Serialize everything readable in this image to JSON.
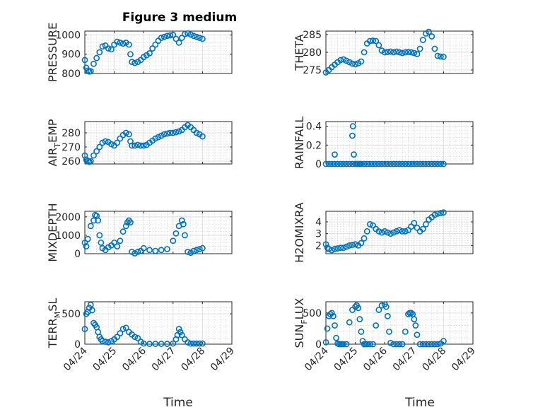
{
  "figure": {
    "title": "Figure 3 medium",
    "marker_color": "#0072bd",
    "xlabel": "Time",
    "x_ticks": [
      "04/24",
      "04/25",
      "04/26",
      "04/27",
      "04/28",
      "04/29"
    ]
  },
  "chart_data": [
    {
      "type": "scatter",
      "name": "pressure-panel",
      "ylabel": "PRESSURE",
      "ylim": [
        800,
        1020
      ],
      "yticks": [
        800,
        900,
        1000
      ],
      "xlim": [
        "04/24",
        "04/29"
      ],
      "grid": true,
      "x": [
        0.0,
        0.05,
        0.1,
        0.15,
        0.2,
        0.3,
        0.4,
        0.5,
        0.6,
        0.7,
        0.8,
        0.9,
        1.0,
        1.1,
        1.2,
        1.3,
        1.4,
        1.5,
        1.55,
        1.6,
        1.7,
        1.8,
        1.9,
        2.0,
        2.1,
        2.2,
        2.3,
        2.4,
        2.5,
        2.6,
        2.7,
        2.8,
        2.9,
        3.0,
        3.1,
        3.2,
        3.3,
        3.4,
        3.5,
        3.6,
        3.7,
        3.8,
        3.9,
        4.0
      ],
      "y": [
        870,
        830,
        815,
        810,
        812,
        850,
        880,
        910,
        940,
        945,
        930,
        925,
        950,
        965,
        960,
        955,
        960,
        950,
        900,
        860,
        855,
        860,
        870,
        885,
        895,
        905,
        930,
        950,
        970,
        985,
        990,
        995,
        998,
        1000,
        980,
        960,
        985,
        1005,
        1008,
        1002,
        995,
        990,
        985,
        980
      ]
    },
    {
      "type": "scatter",
      "name": "theta-panel",
      "ylabel": "THETA",
      "ylim": [
        274,
        286
      ],
      "yticks": [
        275,
        280,
        285
      ],
      "xlim": [
        "04/24",
        "04/29"
      ],
      "grid": true,
      "x": [
        0.0,
        0.1,
        0.2,
        0.3,
        0.4,
        0.5,
        0.6,
        0.7,
        0.8,
        0.9,
        1.0,
        1.1,
        1.2,
        1.3,
        1.4,
        1.5,
        1.6,
        1.7,
        1.8,
        1.9,
        2.0,
        2.1,
        2.2,
        2.3,
        2.4,
        2.5,
        2.6,
        2.7,
        2.8,
        2.9,
        3.0,
        3.1,
        3.2,
        3.3,
        3.4,
        3.5,
        3.6,
        3.7,
        3.8,
        3.9,
        4.0
      ],
      "y": [
        274.3,
        275.0,
        275.8,
        276.5,
        277.2,
        277.8,
        278.0,
        277.6,
        277.2,
        276.8,
        276.6,
        276.9,
        277.4,
        280.0,
        282.5,
        283.2,
        283.3,
        283.2,
        282.0,
        280.5,
        280.0,
        280.1,
        280.2,
        280.0,
        280.2,
        280.0,
        279.8,
        280.0,
        280.1,
        280.0,
        279.8,
        279.5,
        281.0,
        283.5,
        285.3,
        285.8,
        284.5,
        281.0,
        279.0,
        278.8,
        278.7
      ]
    },
    {
      "type": "scatter",
      "name": "air-temp-panel",
      "ylabel_main": "AIR",
      "ylabel_sub": "T",
      "ylabel_rest": "EMP",
      "ylim": [
        258,
        288
      ],
      "yticks": [
        260,
        270,
        280
      ],
      "xlim": [
        "04/24",
        "04/29"
      ],
      "grid": true,
      "x": [
        0.0,
        0.05,
        0.1,
        0.15,
        0.2,
        0.3,
        0.4,
        0.5,
        0.6,
        0.7,
        0.8,
        0.9,
        1.0,
        1.1,
        1.2,
        1.3,
        1.4,
        1.5,
        1.55,
        1.6,
        1.7,
        1.8,
        1.9,
        2.0,
        2.1,
        2.2,
        2.3,
        2.4,
        2.5,
        2.6,
        2.7,
        2.8,
        2.9,
        3.0,
        3.1,
        3.2,
        3.3,
        3.4,
        3.5,
        3.6,
        3.7,
        3.8,
        3.9,
        4.0
      ],
      "y": [
        264,
        261,
        260,
        259.5,
        260,
        264,
        267,
        270,
        273,
        274,
        273.5,
        272,
        271,
        273,
        276,
        278.5,
        280,
        279,
        274,
        271,
        271,
        271.5,
        271,
        271,
        271.5,
        273,
        274.5,
        276,
        277,
        278,
        279,
        279.5,
        280,
        280,
        280.5,
        281,
        282,
        284,
        285.5,
        284,
        282,
        280,
        279,
        277.5
      ]
    },
    {
      "type": "scatter",
      "name": "rainfall-panel",
      "ylabel": "RAINFALL",
      "ylim": [
        0,
        0.45
      ],
      "yticks": [
        0,
        0.2,
        0.4
      ],
      "xlim": [
        "04/24",
        "04/29"
      ],
      "grid": true,
      "x": [
        0.0,
        0.1,
        0.2,
        0.3,
        0.4,
        0.5,
        0.6,
        0.7,
        0.8,
        0.9,
        1.0,
        1.05,
        1.1,
        1.15,
        1.2,
        1.3,
        1.4,
        1.5,
        1.6,
        1.7,
        1.8,
        1.9,
        2.0,
        2.1,
        2.2,
        2.3,
        2.4,
        2.5,
        2.6,
        2.7,
        2.8,
        2.9,
        3.0,
        3.1,
        3.2,
        3.3,
        3.4,
        3.5,
        3.6,
        3.7,
        3.8,
        3.9,
        4.0,
        0.3,
        0.9,
        0.92,
        0.95
      ],
      "y": [
        0,
        0,
        0,
        0,
        0,
        0,
        0,
        0,
        0,
        0,
        0,
        0,
        0,
        0,
        0,
        0,
        0,
        0,
        0,
        0,
        0,
        0,
        0,
        0,
        0,
        0,
        0,
        0,
        0,
        0,
        0,
        0,
        0,
        0,
        0,
        0,
        0,
        0,
        0,
        0,
        0,
        0,
        0,
        0.1,
        0.3,
        0.4,
        0.1
      ]
    },
    {
      "type": "scatter",
      "name": "mixdepth-panel",
      "ylabel": "MIXDEPTH",
      "ylim": [
        0,
        2300
      ],
      "yticks": [
        0,
        1000,
        2000
      ],
      "xlim": [
        "04/24",
        "04/29"
      ],
      "grid": true,
      "x": [
        0.0,
        0.05,
        0.1,
        0.2,
        0.3,
        0.35,
        0.4,
        0.45,
        0.5,
        0.55,
        0.6,
        0.7,
        0.8,
        0.9,
        1.0,
        1.1,
        1.2,
        1.3,
        1.4,
        1.45,
        1.5,
        1.55,
        1.6,
        1.7,
        1.8,
        1.9,
        2.0,
        2.2,
        2.4,
        2.6,
        2.8,
        3.0,
        3.1,
        3.2,
        3.3,
        3.35,
        3.4,
        3.5,
        3.6,
        3.7,
        3.8,
        3.9,
        4.0
      ],
      "y": [
        600,
        400,
        800,
        1500,
        1800,
        2100,
        2050,
        1800,
        1000,
        600,
        300,
        200,
        350,
        450,
        600,
        400,
        700,
        1200,
        1500,
        1700,
        1800,
        1700,
        100,
        20,
        100,
        150,
        300,
        200,
        150,
        200,
        250,
        700,
        1100,
        1500,
        1800,
        1600,
        1000,
        100,
        50,
        150,
        200,
        250,
        300
      ]
    },
    {
      "type": "scatter",
      "name": "h2omixra-panel",
      "ylabel": "H2OMIXRA",
      "ylim": [
        1.3,
        4.9
      ],
      "yticks": [
        2,
        3,
        4
      ],
      "xlim": [
        "04/24",
        "04/29"
      ],
      "grid": true,
      "x": [
        0.0,
        0.05,
        0.1,
        0.2,
        0.3,
        0.4,
        0.5,
        0.6,
        0.7,
        0.8,
        0.9,
        1.0,
        1.1,
        1.2,
        1.3,
        1.4,
        1.5,
        1.6,
        1.7,
        1.8,
        1.9,
        2.0,
        2.1,
        2.2,
        2.3,
        2.4,
        2.5,
        2.6,
        2.7,
        2.8,
        2.9,
        3.0,
        3.1,
        3.2,
        3.3,
        3.4,
        3.5,
        3.6,
        3.7,
        3.8,
        3.9,
        4.0
      ],
      "y": [
        2.1,
        1.8,
        1.7,
        1.6,
        1.7,
        1.75,
        1.8,
        1.8,
        1.9,
        2.0,
        2.05,
        2.1,
        2.0,
        2.2,
        2.6,
        3.2,
        3.8,
        3.7,
        3.4,
        3.2,
        3.1,
        3.2,
        3.1,
        3.0,
        3.1,
        3.2,
        3.3,
        3.2,
        3.2,
        3.3,
        3.6,
        3.9,
        3.5,
        3.2,
        3.4,
        3.8,
        4.2,
        4.4,
        4.6,
        4.7,
        4.75,
        4.8
      ]
    },
    {
      "type": "scatter",
      "name": "terr-msl-panel",
      "ylabel_main": "TERR",
      "ylabel_sub": "M",
      "ylabel_rest": "SL",
      "ylim": [
        0,
        700
      ],
      "yticks": [
        0,
        500
      ],
      "xlim": [
        "04/24",
        "04/29"
      ],
      "grid": true,
      "x": [
        0.0,
        0.05,
        0.1,
        0.15,
        0.2,
        0.25,
        0.3,
        0.35,
        0.4,
        0.45,
        0.5,
        0.55,
        0.6,
        0.7,
        0.8,
        0.9,
        1.0,
        1.1,
        1.2,
        1.3,
        1.4,
        1.5,
        1.6,
        1.7,
        1.8,
        1.9,
        2.0,
        2.2,
        2.4,
        2.6,
        2.8,
        3.0,
        3.1,
        3.15,
        3.2,
        3.25,
        3.3,
        3.4,
        3.5,
        3.6,
        3.7,
        3.8,
        3.9,
        4.0
      ],
      "y": [
        250,
        500,
        530,
        600,
        650,
        560,
        350,
        320,
        280,
        200,
        120,
        80,
        50,
        40,
        30,
        50,
        80,
        120,
        180,
        250,
        270,
        200,
        160,
        120,
        100,
        40,
        10,
        5,
        5,
        5,
        5,
        10,
        80,
        150,
        250,
        200,
        150,
        80,
        30,
        10,
        10,
        10,
        10,
        10
      ]
    },
    {
      "type": "scatter",
      "name": "sun-flux-panel",
      "ylabel_main": "SUN",
      "ylabel_sub": "F",
      "ylabel_rest": "LUX",
      "ylim": [
        0,
        680
      ],
      "yticks": [
        0,
        500
      ],
      "xlim": [
        "04/24",
        "04/29"
      ],
      "grid": true,
      "x": [
        0.0,
        0.05,
        0.1,
        0.15,
        0.2,
        0.25,
        0.3,
        0.35,
        0.4,
        0.45,
        0.5,
        0.55,
        0.6,
        0.7,
        0.8,
        0.9,
        1.0,
        1.05,
        1.1,
        1.15,
        1.2,
        1.25,
        1.3,
        1.35,
        1.4,
        1.5,
        1.6,
        1.7,
        1.8,
        1.9,
        2.0,
        2.05,
        2.1,
        2.15,
        2.2,
        2.3,
        2.4,
        2.5,
        2.6,
        2.7,
        2.8,
        2.85,
        2.9,
        2.95,
        3.0,
        3.05,
        3.1,
        3.2,
        3.3,
        3.4,
        3.5,
        3.6,
        3.7,
        3.8,
        3.9,
        4.0
      ],
      "y": [
        30,
        250,
        450,
        480,
        500,
        450,
        300,
        100,
        10,
        0,
        0,
        0,
        0,
        0,
        350,
        550,
        600,
        620,
        580,
        400,
        200,
        50,
        0,
        0,
        0,
        0,
        0,
        300,
        550,
        620,
        640,
        600,
        450,
        200,
        20,
        0,
        0,
        0,
        0,
        200,
        480,
        500,
        500,
        480,
        400,
        300,
        150,
        0,
        0,
        0,
        0,
        0,
        0,
        0,
        10,
        50
      ]
    }
  ]
}
